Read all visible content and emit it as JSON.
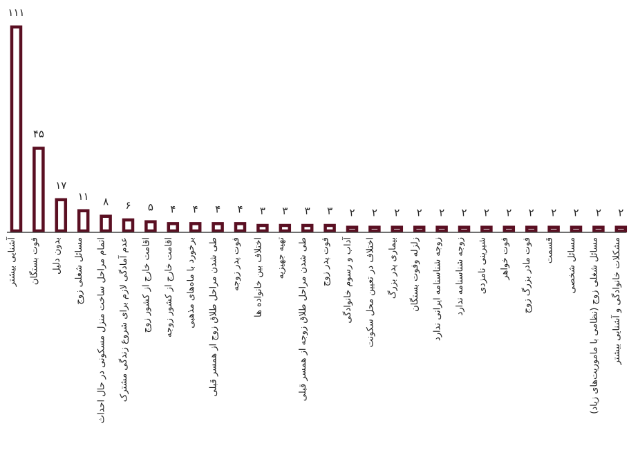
{
  "chart_data": {
    "type": "bar",
    "title": "",
    "xlabel": "",
    "ylabel": "",
    "ylim": [
      0,
      111
    ],
    "grid": false,
    "legend": "none",
    "colors": {
      "bar_stroke": "#5a0f22",
      "bar_fill": "#ffffff",
      "axis": "#404040"
    },
    "categories": [
      "آشنایی بیشتر",
      "فوت بستگان",
      "بدون دلیل",
      "مسائل شغلی زوج",
      "اتمام مراحل ساخت منزل مسکونی در حال احداث",
      "عدم آمادگی لازم برای شروع زندگی مشترک",
      "اقامت خارج از کشور زوج",
      "اقامت خارج از کشور زوجه",
      "برخورد با ماه‌های مذهبی",
      "طی شدن مراحل طلاق زوج از همسر قبلی",
      "فوت پدر زوجه",
      "اختلاف بین خانواده ها",
      "تهیه جهیزیه",
      "طی شدن مراحل طلاق زوجه از همسر قبلی",
      "فوت پدر زوج",
      "آداب و رسوم خانوادگی",
      "اختلاف در تعیین محل سکونت",
      "بیماری پدر بزرگ",
      "زلزله وفوت بستگان",
      "زوجه شناسنامه ایرانی ندارد",
      "زوجه شناسنامه ندارد",
      "شیرینی نامزدی",
      "فوت خواهر",
      "فوت مادر بزرگ زوج",
      "قسمت",
      "مسائل شخصی",
      "مسائل شغلی زوج (نظامی با ماموریت‌های زیاد)",
      "مشکلات خانوادگی و آشنایی بیشتر"
    ],
    "values": [
      111,
      45,
      17,
      11,
      8,
      6,
      5,
      4,
      4,
      4,
      4,
      3,
      3,
      3,
      3,
      2,
      2,
      2,
      2,
      2,
      2,
      2,
      2,
      2,
      2,
      2,
      2,
      2
    ],
    "value_labels": [
      "۱۱۱",
      "۴۵",
      "۱۷",
      "۱۱",
      "۸",
      "۶",
      "۵",
      "۴",
      "۴",
      "۴",
      "۴",
      "۳",
      "۳",
      "۳",
      "۳",
      "۲",
      "۲",
      "۲",
      "۲",
      "۲",
      "۲",
      "۲",
      "۲",
      "۲",
      "۲",
      "۲",
      "۲",
      "۲"
    ]
  }
}
